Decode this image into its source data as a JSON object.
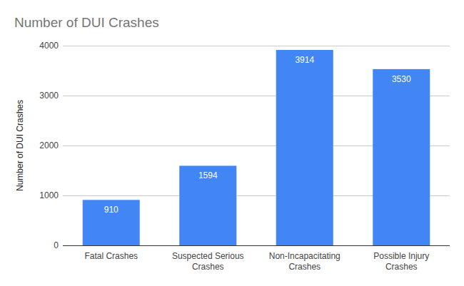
{
  "chart_data": {
    "type": "bar",
    "title": "Number of DUI Crashes",
    "ylabel": "Number of DUI Crashes",
    "categories": [
      "Fatal Crashes",
      "Suspected Serious Crashes",
      "Non-Incapacitating Crashes",
      "Possible Injury Crashes"
    ],
    "values": [
      910,
      1594,
      3914,
      3530
    ],
    "color": "#4285f4",
    "ylim": [
      0,
      4000
    ],
    "yticks": [
      0,
      1000,
      2000,
      3000,
      4000
    ],
    "grid": true,
    "data_labels": true
  }
}
